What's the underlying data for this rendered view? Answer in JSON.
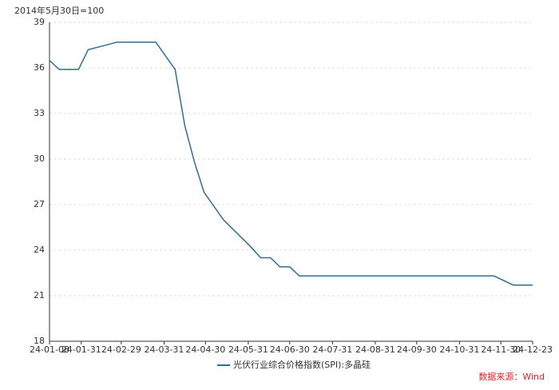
{
  "chart_data": {
    "type": "line",
    "subtitle": "2014年5月30日=100",
    "source": "数据来源：Wind",
    "x": [
      "24-01-08",
      "24-01-15",
      "24-01-22",
      "24-01-29",
      "24-02-05",
      "24-02-26",
      "24-03-25",
      "24-04-08",
      "24-04-15",
      "24-04-22",
      "24-04-29",
      "24-05-13",
      "24-06-02",
      "24-06-09",
      "24-06-16",
      "24-06-23",
      "24-06-30",
      "24-07-07",
      "24-11-25",
      "24-12-09",
      "24-12-23"
    ],
    "series": [
      {
        "name": "光伏行业综合价格指数(SPI):多晶硅",
        "color": "#2e6e96",
        "values": [
          36.5,
          35.9,
          35.9,
          35.9,
          37.2,
          37.7,
          37.7,
          35.9,
          32.2,
          29.8,
          27.8,
          26.0,
          24.2,
          23.5,
          23.5,
          22.9,
          22.9,
          22.3,
          22.3,
          21.7,
          21.7
        ]
      }
    ],
    "xlim": [
      "24-01-08",
      "24-12-23"
    ],
    "xticks": [
      "24-01-08",
      "24-01-31",
      "24-02-29",
      "24-03-31",
      "24-04-30",
      "24-05-31",
      "24-06-30",
      "24-07-31",
      "24-08-31",
      "24-09-30",
      "24-10-31",
      "24-11-30",
      "24-12-23"
    ],
    "ylim": [
      18,
      39
    ],
    "yticks": [
      18,
      21,
      24,
      27,
      30,
      33,
      36,
      39
    ],
    "grid": true
  }
}
